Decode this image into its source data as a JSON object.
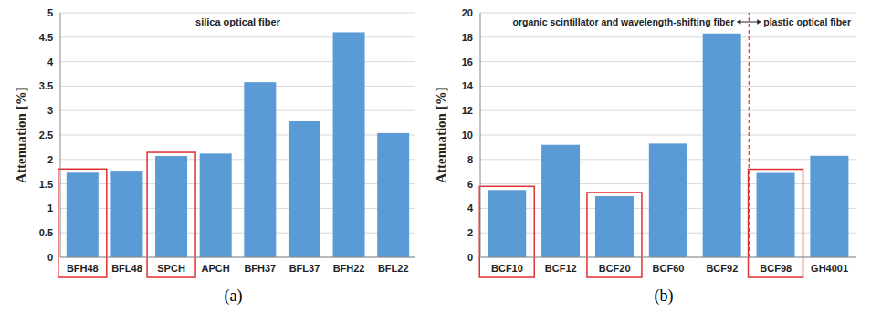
{
  "chart_data": [
    {
      "type": "bar",
      "title": "silica optical fiber",
      "caption": "(a)",
      "ylabel": "Attenuation [%]",
      "categories": [
        "BFH48",
        "BFL48",
        "SPCH",
        "APCH",
        "BFH37",
        "BFL37",
        "BFH22",
        "BFL22"
      ],
      "values": [
        1.73,
        1.77,
        2.07,
        2.12,
        3.58,
        2.78,
        4.6,
        2.54
      ],
      "color": "#5b9bd5",
      "ylim": [
        0,
        5
      ],
      "yticks": [
        0,
        0.5,
        1,
        1.5,
        2,
        2.5,
        3,
        3.5,
        4,
        4.5,
        5
      ],
      "grid": true,
      "highlighted": [
        "BFH48",
        "SPCH"
      ]
    },
    {
      "type": "bar",
      "caption": "(b)",
      "ylabel": "Attenuation [%]",
      "annotations": [
        "organic scintillator and wavelength-shifting fiber",
        "plastic optical fiber"
      ],
      "divider_before": "BCF98",
      "categories": [
        "BCF10",
        "BCF12",
        "BCF20",
        "BCF60",
        "BCF92",
        "BCF98",
        "GH4001"
      ],
      "values": [
        5.5,
        9.2,
        5.0,
        9.3,
        18.3,
        6.9,
        8.3
      ],
      "color": "#5b9bd5",
      "ylim": [
        0,
        20
      ],
      "yticks": [
        0,
        2,
        4,
        6,
        8,
        10,
        12,
        14,
        16,
        18,
        20
      ],
      "grid": true,
      "highlighted": [
        "BCF10",
        "BCF20",
        "BCF98"
      ]
    }
  ]
}
